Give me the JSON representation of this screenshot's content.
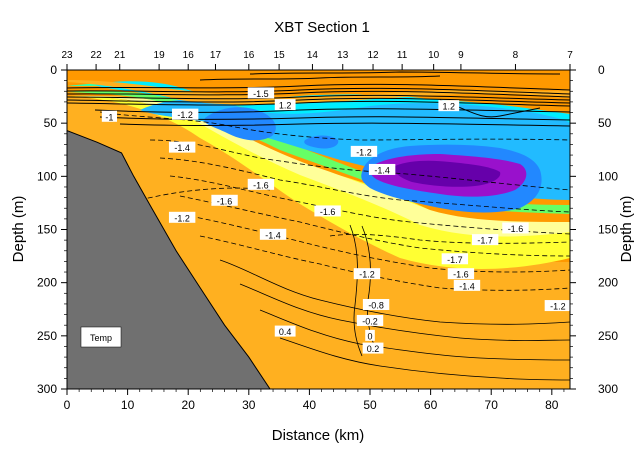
{
  "chart_data": {
    "type": "heatmap",
    "title": "XBT Section 1",
    "xlabel": "Distance (km)",
    "ylabel": "Depth (m)",
    "xlim": [
      0,
      83
    ],
    "ylim": [
      0,
      300
    ],
    "y_inverted": true,
    "xticks": [
      0,
      10,
      20,
      30,
      40,
      50,
      60,
      70,
      80
    ],
    "yticks": [
      0,
      50,
      100,
      150,
      200,
      250,
      300
    ],
    "x_minor_step": 2,
    "y_minor_step": 10,
    "grid": false,
    "variable_label": "Temp",
    "stations": [
      {
        "label": "23",
        "x": 0.0
      },
      {
        "label": "22",
        "x": 4.8
      },
      {
        "label": "21",
        "x": 8.7
      },
      {
        "label": "19",
        "x": 15.2
      },
      {
        "label": "16",
        "x": 20.0
      },
      {
        "label": "17",
        "x": 24.5
      },
      {
        "label": "16",
        "x": 30.0
      },
      {
        "label": "15",
        "x": 35.0
      },
      {
        "label": "14",
        "x": 40.5
      },
      {
        "label": "13",
        "x": 45.5
      },
      {
        "label": "12",
        "x": 50.5
      },
      {
        "label": "11",
        "x": 55.3
      },
      {
        "label": "10",
        "x": 60.5
      },
      {
        "label": "9",
        "x": 65.0
      },
      {
        "label": "8",
        "x": 74.0
      },
      {
        "label": "7",
        "x": 83.0
      }
    ],
    "colors": {
      "warm": "#ff9900",
      "orange": "#ffb020",
      "yellow": "#ffff33",
      "light_yellow": "#ffff99",
      "light_green": "#ccff66",
      "green": "#66ff66",
      "cyan_green": "#33ffaa",
      "cyan": "#00eeff",
      "light_blue": "#22bbff",
      "blue": "#2288ff",
      "dark_purple": "#6600aa",
      "purple": "#9911cc",
      "seabed": "#707070"
    },
    "bathymetry": [
      [
        0,
        57
      ],
      [
        5,
        68
      ],
      [
        9,
        78
      ],
      [
        11,
        100
      ],
      [
        14,
        130
      ],
      [
        18,
        170
      ],
      [
        22,
        205
      ],
      [
        26,
        240
      ],
      [
        30,
        270
      ],
      [
        33.5,
        300
      ],
      [
        0,
        300
      ]
    ],
    "contour_labels": [
      {
        "text": "-1",
        "x": 7,
        "y": 44
      },
      {
        "text": "-1.2",
        "x": 19.5,
        "y": 42
      },
      {
        "text": "-1.4",
        "x": 19,
        "y": 73
      },
      {
        "text": "-1.6",
        "x": 32,
        "y": 108
      },
      {
        "text": "-1.6",
        "x": 26,
        "y": 123
      },
      {
        "text": "-1.6",
        "x": 43,
        "y": 133
      },
      {
        "text": "-1.4",
        "x": 34,
        "y": 155
      },
      {
        "text": "-1.2",
        "x": 19,
        "y": 139
      },
      {
        "text": "-1.2",
        "x": 49,
        "y": 77
      },
      {
        "text": "-1.4",
        "x": 52,
        "y": 94
      },
      {
        "text": "-1.5",
        "x": 32,
        "y": 22
      },
      {
        "text": "1.2",
        "x": 36,
        "y": 33
      },
      {
        "text": "1.2",
        "x": 63,
        "y": 34
      },
      {
        "text": "-1.6",
        "x": 74,
        "y": 149
      },
      {
        "text": "-1.7",
        "x": 69,
        "y": 160
      },
      {
        "text": "-1.7",
        "x": 64,
        "y": 178
      },
      {
        "text": "-1.6",
        "x": 65,
        "y": 192
      },
      {
        "text": "-1.4",
        "x": 66,
        "y": 203
      },
      {
        "text": "-1.2",
        "x": 49.5,
        "y": 192
      },
      {
        "text": "-1.2",
        "x": 81,
        "y": 222
      },
      {
        "text": "-0.8",
        "x": 51,
        "y": 221
      },
      {
        "text": "-0.2",
        "x": 50,
        "y": 236
      },
      {
        "text": "0",
        "x": 50,
        "y": 250
      },
      {
        "text": "0.2",
        "x": 50.5,
        "y": 262
      },
      {
        "text": "0.4",
        "x": 36,
        "y": 246
      }
    ]
  },
  "legend": {
    "label": "Temp"
  }
}
